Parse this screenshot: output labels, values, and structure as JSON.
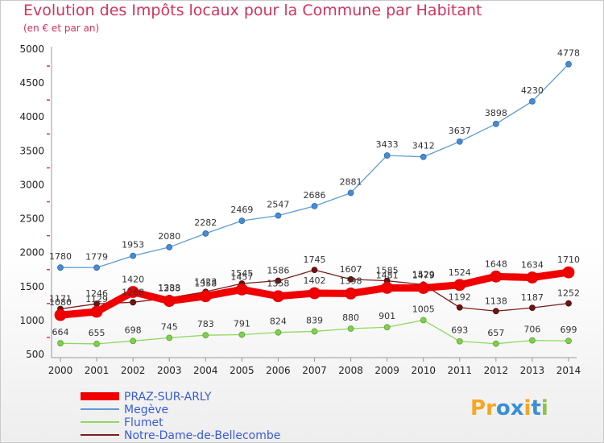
{
  "header": {
    "title": "Evolution des Impôts locaux pour la Commune par Habitant",
    "subtitle": "(en € et par an)"
  },
  "logo": {
    "text": "Proxiti"
  },
  "chart_data": {
    "type": "line",
    "title": "Evolution des Impôts locaux pour la Commune par Habitant",
    "subtitle": "(en € et par an)",
    "xlabel": "",
    "ylabel": "",
    "x": [
      "2000",
      "2001",
      "2002",
      "2003",
      "2004",
      "2005",
      "2006",
      "2007",
      "2008",
      "2009",
      "2010",
      "2011",
      "2012",
      "2013",
      "2014"
    ],
    "ylim": [
      500,
      5000
    ],
    "yticks": [
      500,
      1000,
      1500,
      2000,
      2500,
      3000,
      3500,
      4000,
      4500,
      5000
    ],
    "grid": false,
    "legend_position": "bottom-left",
    "series": [
      {
        "name": "PRAZ-SUR-ARLY",
        "color": "#f00000",
        "values": [
          1080,
          1129,
          1420,
          1288,
          1358,
          1457,
          1358,
          1402,
          1398,
          1481,
          1479,
          1524,
          1648,
          1634,
          1710
        ]
      },
      {
        "name": "Megève",
        "color": "#5b9bd5",
        "values": [
          1780,
          1779,
          1953,
          2080,
          2282,
          2469,
          2547,
          2686,
          2881,
          3433,
          3412,
          3637,
          3898,
          4230,
          4778
        ]
      },
      {
        "name": "Flumet",
        "color": "#90d860",
        "values": [
          664,
          655,
          698,
          745,
          783,
          791,
          824,
          839,
          880,
          901,
          1005,
          693,
          657,
          706,
          699
        ]
      },
      {
        "name": "Notre-Dame-de-Bellecombe",
        "color": "#7a1e1e",
        "values": [
          1171,
          1246,
          1268,
          1333,
          1423,
          1545,
          1586,
          1745,
          1607,
          1585,
          1529,
          1192,
          1138,
          1187,
          1252
        ]
      }
    ]
  }
}
